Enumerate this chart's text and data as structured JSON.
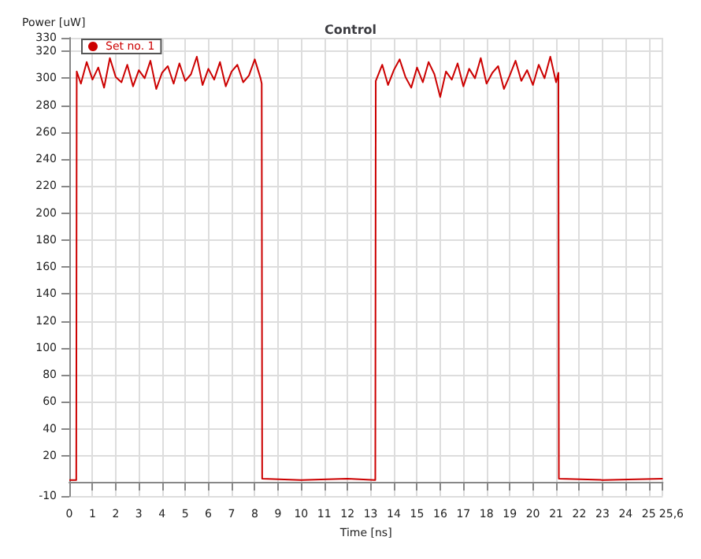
{
  "chart_data": {
    "type": "line",
    "title": "Control",
    "xlabel": "Time [ns]",
    "ylabel": "Power [uW]",
    "series": [
      {
        "name": "Set no. 1",
        "color": "#cc0000",
        "x": [
          0,
          0.3,
          0.32,
          0.5,
          0.75,
          1,
          1.25,
          1.5,
          1.75,
          2,
          2.25,
          2.5,
          2.75,
          3,
          3.25,
          3.5,
          3.75,
          4,
          4.25,
          4.5,
          4.75,
          5,
          5.25,
          5.5,
          5.75,
          6,
          6.25,
          6.5,
          6.75,
          7,
          7.25,
          7.5,
          7.75,
          8,
          8.25,
          8.3,
          8.32,
          10,
          12,
          13.2,
          13.22,
          13.5,
          13.75,
          14,
          14.25,
          14.5,
          14.75,
          15,
          15.25,
          15.5,
          15.75,
          16,
          16.25,
          16.5,
          16.75,
          17,
          17.25,
          17.5,
          17.75,
          18,
          18.25,
          18.5,
          18.75,
          19,
          19.25,
          19.5,
          19.75,
          20,
          20.25,
          20.5,
          20.75,
          21,
          21.1,
          21.12,
          23,
          25.6
        ],
        "values": [
          2,
          2,
          305,
          296,
          312,
          299,
          308,
          293,
          315,
          301,
          297,
          310,
          294,
          306,
          300,
          313,
          292,
          304,
          309,
          296,
          311,
          298,
          303,
          316,
          295,
          307,
          299,
          312,
          294,
          305,
          310,
          297,
          302,
          314,
          300,
          296,
          3,
          2,
          3,
          2,
          298,
          310,
          295,
          306,
          314,
          301,
          293,
          308,
          297,
          312,
          303,
          286,
          305,
          299,
          311,
          294,
          307,
          300,
          315,
          296,
          304,
          309,
          292,
          302,
          313,
          298,
          306,
          295,
          310,
          300,
          316,
          297,
          304,
          3,
          2,
          3
        ]
      }
    ],
    "xlim": [
      0,
      25.6
    ],
    "xticks": [
      0,
      1,
      2,
      3,
      4,
      5,
      6,
      7,
      8,
      9,
      10,
      11,
      12,
      13,
      14,
      15,
      16,
      17,
      18,
      19,
      20,
      21,
      22,
      23,
      24,
      25,
      {
        "value": 25.6,
        "label": "25,6"
      }
    ],
    "ylim": [
      -10,
      330
    ],
    "yticks": [
      -10,
      20,
      40,
      60,
      80,
      100,
      120,
      140,
      160,
      180,
      200,
      220,
      240,
      260,
      280,
      300,
      320,
      330
    ],
    "grid": true,
    "legend": "top left",
    "marker": "none",
    "line_style": "solid"
  }
}
